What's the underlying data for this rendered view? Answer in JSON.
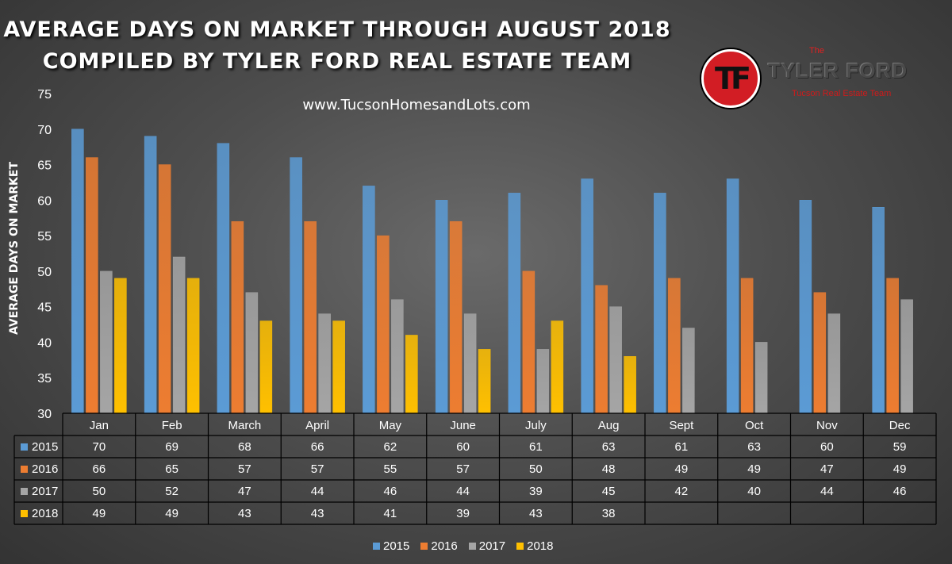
{
  "header": {
    "title_line1": "AVERAGE DAYS ON MARKET THROUGH AUGUST 2018",
    "title_line2": "COMPILED BY TYLER FORD REAL ESTATE TEAM",
    "website": "www.TucsonHomesandLots.com"
  },
  "logo": {
    "the": "The",
    "name": "TYLER FORD",
    "tagline": "Tucson Real Estate Team",
    "letters": "TF"
  },
  "chart_data": {
    "type": "bar",
    "title": "AVERAGE DAYS ON MARKET THROUGH AUGUST 2018",
    "ylabel": "AVERAGE DAYS ON MARKET",
    "xlabel": "",
    "ylim": [
      30,
      75
    ],
    "yticks": [
      30,
      35,
      40,
      45,
      50,
      55,
      60,
      65,
      70,
      75
    ],
    "categories": [
      "Jan",
      "Feb",
      "March",
      "April",
      "May",
      "June",
      "July",
      "Aug",
      "Sept",
      "Oct",
      "Nov",
      "Dec"
    ],
    "series": [
      {
        "name": "2015",
        "color": "#5b9bd5",
        "values": [
          70,
          69,
          68,
          66,
          62,
          60,
          61,
          63,
          61,
          63,
          60,
          59
        ]
      },
      {
        "name": "2016",
        "color": "#ed7d31",
        "values": [
          66,
          65,
          57,
          57,
          55,
          57,
          50,
          48,
          49,
          49,
          47,
          49
        ]
      },
      {
        "name": "2017",
        "color": "#a5a5a5",
        "values": [
          50,
          52,
          47,
          44,
          46,
          44,
          39,
          45,
          42,
          40,
          44,
          46
        ]
      },
      {
        "name": "2018",
        "color": "#ffc000",
        "values": [
          49,
          49,
          43,
          43,
          41,
          39,
          43,
          38,
          null,
          null,
          null,
          null
        ]
      }
    ],
    "data_table": true,
    "legend_position": "bottom",
    "grid": false
  }
}
